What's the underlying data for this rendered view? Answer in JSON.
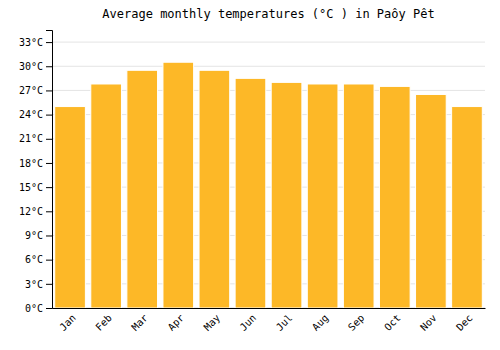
{
  "chart_data": {
    "type": "bar",
    "title": "Average monthly temperatures (°C ) in Paôy Pêt",
    "categories": [
      "Jan",
      "Feb",
      "Mar",
      "Apr",
      "May",
      "Jun",
      "Jul",
      "Aug",
      "Sep",
      "Oct",
      "Nov",
      "Dec"
    ],
    "values": [
      25.0,
      27.8,
      29.5,
      30.5,
      29.5,
      28.5,
      28.0,
      27.8,
      27.8,
      27.5,
      26.5,
      25.0
    ],
    "color": "#FDB827",
    "ylim": [
      0,
      34.5
    ],
    "yticks": [
      {
        "value": 0,
        "label": "0°C"
      },
      {
        "value": 3,
        "label": "3°C"
      },
      {
        "value": 6,
        "label": "6°C"
      },
      {
        "value": 9,
        "label": "9°C"
      },
      {
        "value": 12,
        "label": "12°C"
      },
      {
        "value": 15,
        "label": "15°C"
      },
      {
        "value": 18,
        "label": "18°C"
      },
      {
        "value": 21,
        "label": "21°C"
      },
      {
        "value": 24,
        "label": "24°C"
      },
      {
        "value": 27,
        "label": "27°C"
      },
      {
        "value": 30,
        "label": "30°C"
      },
      {
        "value": 33,
        "label": "33°C"
      }
    ],
    "grid": true
  }
}
